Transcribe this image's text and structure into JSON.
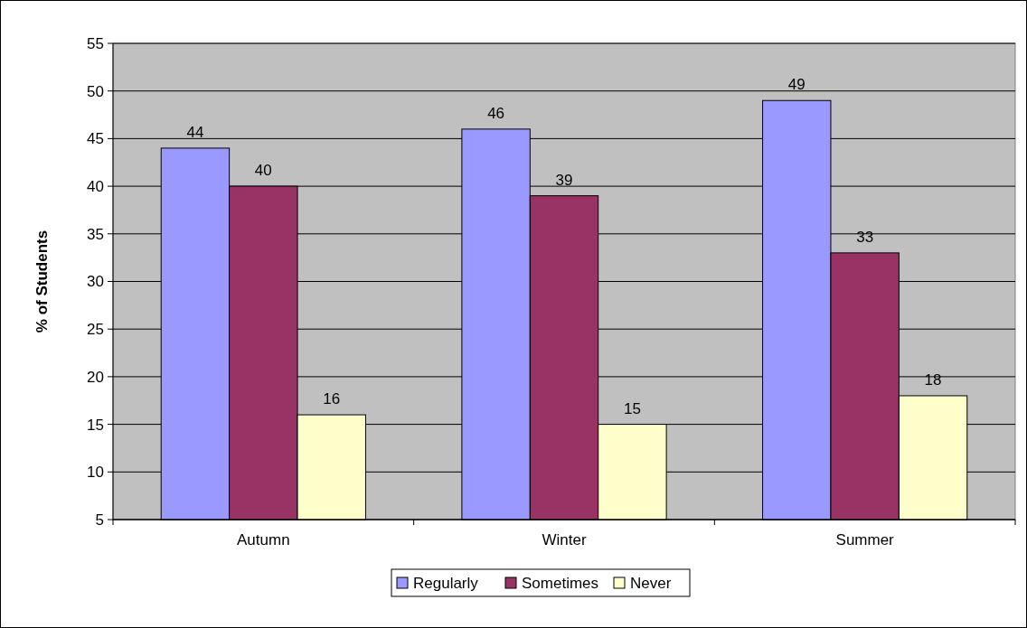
{
  "chart_data": {
    "type": "bar",
    "ylabel": "% of Students",
    "categories": [
      "Autumn",
      "Winter",
      "Summer"
    ],
    "series": [
      {
        "name": "Regularly",
        "color": "#9999ff",
        "values": [
          44,
          46,
          49
        ]
      },
      {
        "name": "Sometimes",
        "color": "#993366",
        "values": [
          40,
          39,
          33
        ]
      },
      {
        "name": "Never",
        "color": "#ffffcc",
        "values": [
          16,
          15,
          18
        ]
      }
    ],
    "ylim": [
      5,
      55
    ],
    "yticks": [
      5,
      10,
      15,
      20,
      25,
      30,
      35,
      40,
      45,
      50,
      55
    ],
    "grid": "y",
    "legend": "bottom",
    "data_labels": true
  }
}
